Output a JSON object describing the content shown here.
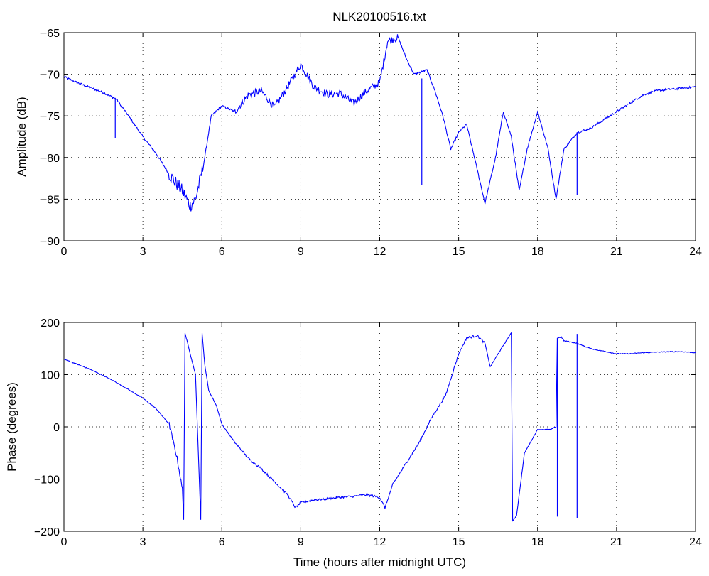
{
  "title": "NLK20100516.txt",
  "line_color": "#0000ff",
  "chart_data": [
    {
      "type": "line",
      "title": "NLK20100516.txt",
      "xlabel": "",
      "ylabel": "Amplitude (dB)",
      "xlim": [
        0,
        24
      ],
      "ylim": [
        -90,
        -65
      ],
      "xticks": [
        "0",
        "3",
        "6",
        "9",
        "12",
        "15",
        "18",
        "21",
        "24"
      ],
      "yticks": [
        "−90",
        "−85",
        "−80",
        "−75",
        "−70",
        "−65"
      ],
      "grid": true,
      "series": [
        {
          "x": [
            0,
            0.5,
            1,
            1.5,
            2,
            2.5,
            3,
            3.5,
            4,
            4.5,
            4.8,
            5,
            5.3,
            5.6,
            6,
            6.5,
            7,
            7.5,
            8,
            8.5,
            9,
            9.5,
            10,
            10.5,
            11,
            11.5,
            12,
            12.3,
            12.7,
            13,
            13.3,
            13.8,
            14.1,
            14.4,
            14.7,
            15,
            15.3,
            15.6,
            16,
            16.4,
            16.7,
            17,
            17.3,
            17.6,
            18,
            18.4,
            18.7,
            19,
            19.5,
            20,
            20.5,
            21,
            21.5,
            22,
            22.5,
            23,
            23.5,
            24
          ],
          "y": [
            -70.3,
            -71,
            -71.6,
            -72.2,
            -73,
            -75.2,
            -77.5,
            -79.5,
            -82,
            -84,
            -85.8,
            -85,
            -81,
            -75,
            -73.8,
            -74.5,
            -72.5,
            -72,
            -74,
            -71.5,
            -68.8,
            -71.5,
            -72.4,
            -72.3,
            -73.5,
            -72,
            -71,
            -66,
            -65.6,
            -68,
            -70,
            -69.5,
            -72,
            -75,
            -79,
            -77,
            -76,
            -80,
            -85.5,
            -80,
            -74.5,
            -77.5,
            -84,
            -79,
            -74.5,
            -79,
            -85,
            -79,
            -77,
            -76.5,
            -75.5,
            -74.5,
            -73.5,
            -72.5,
            -72,
            -71.8,
            -71.7,
            -71.5
          ]
        }
      ],
      "spikes": [
        {
          "x": 1.95,
          "from": -73,
          "to": -77.7
        },
        {
          "x": 13.6,
          "from": -70.5,
          "to": -83.3
        },
        {
          "x": 19.5,
          "from": -77,
          "to": -84.5
        }
      ]
    },
    {
      "type": "line",
      "title": "",
      "xlabel": "Time (hours after midnight UTC)",
      "ylabel": "Phase (degrees)",
      "xlim": [
        0,
        24
      ],
      "ylim": [
        -200,
        200
      ],
      "xticks": [
        "0",
        "3",
        "6",
        "9",
        "12",
        "15",
        "18",
        "21",
        "24"
      ],
      "yticks": [
        "−200",
        "−100",
        "0",
        "100",
        "200"
      ],
      "grid": true,
      "series": [
        {
          "x": [
            0,
            0.5,
            1,
            1.5,
            2,
            2.5,
            3,
            3.5,
            4,
            4.3,
            4.5,
            4.55,
            4.6,
            4.7,
            5,
            5.2,
            5.25,
            5.35,
            5.5,
            5.8,
            6,
            6.5,
            7,
            7.5,
            8,
            8.5,
            8.8,
            9,
            9.5,
            10,
            10.5,
            11,
            11.5,
            12,
            12.2,
            12.5,
            13,
            13.5,
            14,
            14.5,
            15,
            15.3,
            15.7,
            16,
            16.2,
            16.5,
            17,
            17.05,
            17.2,
            17.5,
            18,
            18.5,
            18.7,
            18.75,
            18.9,
            19,
            19.5,
            20,
            20.5,
            21,
            21.5,
            22,
            22.5,
            23,
            23.5,
            24
          ],
          "y": [
            130,
            120,
            110,
            98,
            85,
            70,
            55,
            35,
            5,
            -60,
            -120,
            -178,
            180,
            160,
            100,
            -178,
            180,
            120,
            70,
            40,
            5,
            -30,
            -60,
            -80,
            -105,
            -130,
            -155,
            -145,
            -140,
            -138,
            -135,
            -133,
            -130,
            -135,
            -155,
            -110,
            -70,
            -30,
            20,
            60,
            140,
            170,
            175,
            160,
            115,
            140,
            180,
            -180,
            -170,
            -50,
            -5,
            -5,
            0,
            170,
            172,
            165,
            160,
            150,
            145,
            140,
            140,
            142,
            143,
            144,
            144,
            142
          ]
        }
      ],
      "spikes": [
        {
          "x": 18.75,
          "from": 170,
          "to": -172
        },
        {
          "x": 19.5,
          "from": 178,
          "to": -175
        }
      ]
    }
  ]
}
